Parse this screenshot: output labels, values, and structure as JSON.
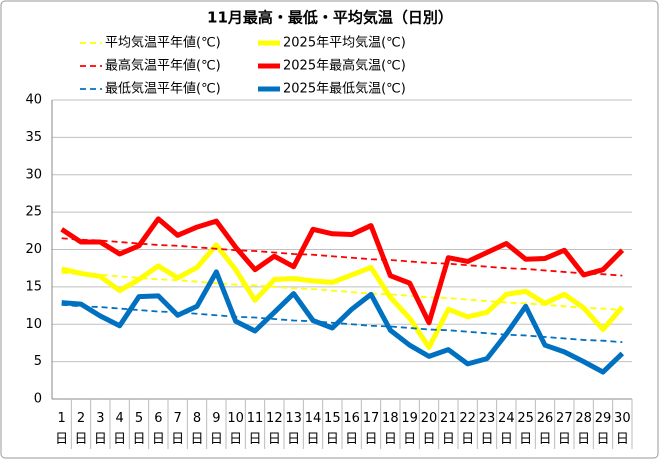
{
  "chart_data": {
    "type": "line",
    "title": "11月最高・最低・平均気温（日別）",
    "categories": [
      "1日",
      "2日",
      "3日",
      "4日",
      "5日",
      "6日",
      "7日",
      "8日",
      "9日",
      "10日",
      "11日",
      "12日",
      "13日",
      "14日",
      "15日",
      "16日",
      "17日",
      "18日",
      "19日",
      "20日",
      "21日",
      "22日",
      "23日",
      "24日",
      "25日",
      "26日",
      "27日",
      "28日",
      "29日",
      "30日"
    ],
    "ylim": [
      0,
      40
    ],
    "yticks": [
      0,
      5,
      10,
      15,
      20,
      25,
      30,
      35,
      40
    ],
    "grid": true,
    "series": [
      {
        "name": "平均気温平年値(℃)",
        "color": "#ffff00",
        "dashed": true,
        "values": [
          16.9,
          16.7,
          16.6,
          16.4,
          16.2,
          16.0,
          15.9,
          15.7,
          15.5,
          15.3,
          15.2,
          15.0,
          14.8,
          14.7,
          14.5,
          14.3,
          14.1,
          14.0,
          13.8,
          13.6,
          13.5,
          13.3,
          13.1,
          12.9,
          12.8,
          12.6,
          12.4,
          12.2,
          12.1,
          11.9
        ]
      },
      {
        "name": "2025年平均気温(℃)",
        "color": "#ffff00",
        "dashed": false,
        "values": [
          17.4,
          16.8,
          16.4,
          14.5,
          16.0,
          17.8,
          16.2,
          17.6,
          20.6,
          17.3,
          13.2,
          16.0,
          16.1,
          15.8,
          15.6,
          16.6,
          17.6,
          13.6,
          10.8,
          6.9,
          12.0,
          11.0,
          11.6,
          14.0,
          14.4,
          12.8,
          14.0,
          12.2,
          9.3,
          12.3
        ]
      },
      {
        "name": "最高気温平年値(℃)",
        "color": "#ff0000",
        "dashed": true,
        "values": [
          21.5,
          21.3,
          21.2,
          21.0,
          20.8,
          20.6,
          20.5,
          20.3,
          20.1,
          19.9,
          19.8,
          19.6,
          19.4,
          19.3,
          19.1,
          18.9,
          18.7,
          18.6,
          18.4,
          18.2,
          18.1,
          17.9,
          17.7,
          17.5,
          17.4,
          17.2,
          17.0,
          16.8,
          16.7,
          16.5
        ]
      },
      {
        "name": "2025年最高気温(℃)",
        "color": "#ff0000",
        "dashed": false,
        "values": [
          22.7,
          21.0,
          21.0,
          19.4,
          20.5,
          24.1,
          21.9,
          23.0,
          23.8,
          20.3,
          17.3,
          19.1,
          17.7,
          22.7,
          22.1,
          22.0,
          23.2,
          16.5,
          15.5,
          10.2,
          18.9,
          18.4,
          19.6,
          20.8,
          18.7,
          18.8,
          19.9,
          16.6,
          17.3,
          19.9
        ]
      },
      {
        "name": "最低気温平年値(℃)",
        "color": "#0070c0",
        "dashed": true,
        "values": [
          12.6,
          12.4,
          12.3,
          12.1,
          11.9,
          11.7,
          11.6,
          11.4,
          11.2,
          11.0,
          10.9,
          10.7,
          10.5,
          10.4,
          10.2,
          10.0,
          9.8,
          9.7,
          9.5,
          9.3,
          9.2,
          9.0,
          8.8,
          8.6,
          8.5,
          8.3,
          8.1,
          7.9,
          7.8,
          7.6
        ]
      },
      {
        "name": "2025年最低気温(℃)",
        "color": "#0070c0",
        "dashed": false,
        "values": [
          12.9,
          12.7,
          11.1,
          9.8,
          13.7,
          13.8,
          11.2,
          12.4,
          17.0,
          10.4,
          9.1,
          11.6,
          14.1,
          10.5,
          9.5,
          12.0,
          14.0,
          9.2,
          7.2,
          5.7,
          6.6,
          4.7,
          5.4,
          8.7,
          12.4,
          7.2,
          6.3,
          5.0,
          3.6,
          6.1
        ]
      }
    ]
  }
}
